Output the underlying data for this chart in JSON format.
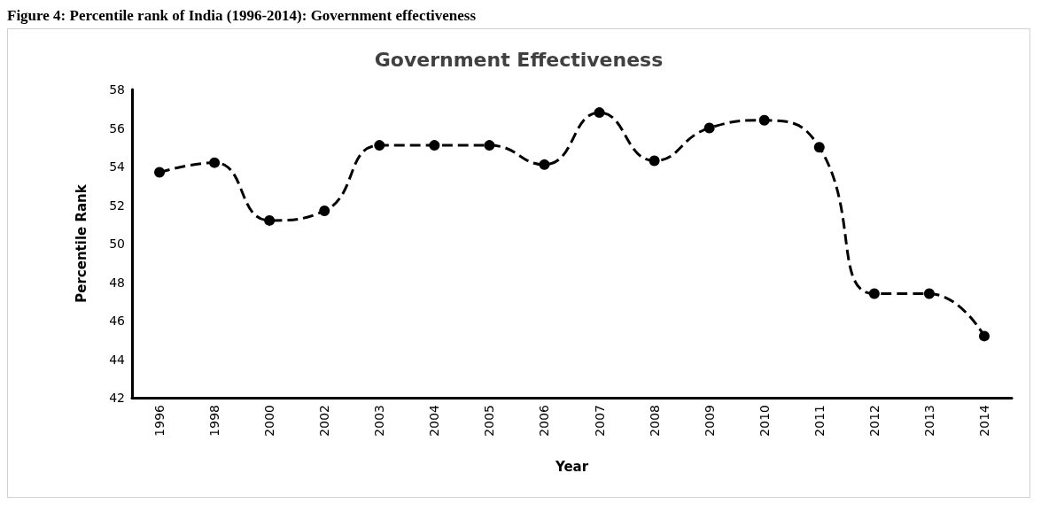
{
  "chart_data": {
    "type": "line",
    "title": "Government Effectiveness",
    "annotations": [
      "Figure 4: Percentile rank of India (1996-2014): Government effectiveness"
    ],
    "xlabel": "Year",
    "ylabel": "Percentile Rank",
    "categories": [
      "1996",
      "1998",
      "2000",
      "2002",
      "2003",
      "2004",
      "2005",
      "2006",
      "2007",
      "2008",
      "2009",
      "2010",
      "2011",
      "2012",
      "2013",
      "2014"
    ],
    "series": [
      {
        "color": "#000000",
        "values": [
          53.7,
          54.2,
          51.2,
          51.7,
          55.1,
          55.1,
          55.1,
          54.1,
          56.8,
          54.3,
          56.0,
          56.4,
          55.0,
          47.4,
          47.4,
          45.2
        ]
      }
    ],
    "ylim": [
      42,
      58
    ],
    "yticks": [
      42,
      44,
      46,
      48,
      50,
      52,
      54,
      56,
      58
    ],
    "grid": false,
    "marker": "circle",
    "line_style": "dashed"
  }
}
